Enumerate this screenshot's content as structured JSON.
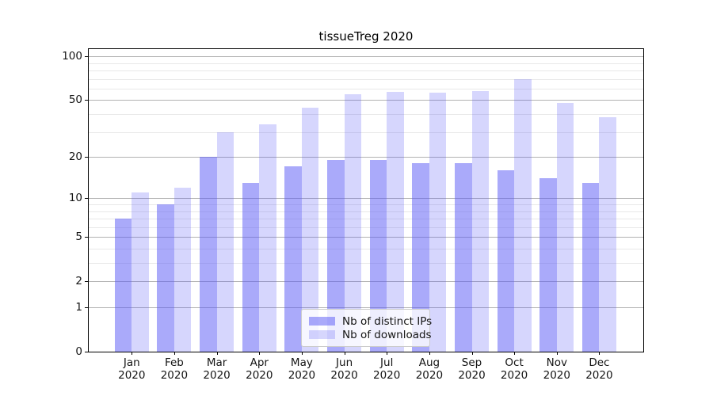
{
  "title": "tissueTreg 2020",
  "legend": {
    "items": [
      {
        "label": "Nb of distinct IPs",
        "series": "ips"
      },
      {
        "label": "Nb of downloads",
        "series": "downloads"
      }
    ]
  },
  "colors": {
    "bar_base": "#5555f5",
    "ips_alpha": 0.5,
    "downloads_alpha": 0.24,
    "ips_solid": "#a9a9fa",
    "downloads_solid": "#d8d8f8",
    "grid_major": "#b2b2b2",
    "grid_minor": "#e8e8e8",
    "axis_color": "#000000",
    "text_color": "#141414",
    "legend_border": "#cccccc"
  },
  "chart_data": {
    "type": "bar",
    "title": "tissueTreg 2020",
    "categories": [
      "Jan 2020",
      "Feb 2020",
      "Mar 2020",
      "Apr 2020",
      "May 2020",
      "Jun 2020",
      "Jul 2020",
      "Aug 2020",
      "Sep 2020",
      "Oct 2020",
      "Nov 2020",
      "Dec 2020"
    ],
    "x_tick_month": [
      "Jan",
      "Feb",
      "Mar",
      "Apr",
      "May",
      "Jun",
      "Jul",
      "Aug",
      "Sep",
      "Oct",
      "Nov",
      "Dec"
    ],
    "x_tick_year": "2020",
    "series": [
      {
        "name": "Nb of distinct IPs",
        "key": "ips",
        "values": [
          7,
          9,
          20,
          13,
          17,
          19,
          19,
          18,
          18,
          16,
          14,
          13
        ]
      },
      {
        "name": "Nb of downloads",
        "key": "downloads",
        "values": [
          11,
          12,
          30,
          34,
          44,
          55,
          57,
          56,
          58,
          70,
          48,
          38
        ]
      }
    ],
    "yscale": "log1p",
    "ylim": [
      0,
      112
    ],
    "y_major_ticks": [
      0,
      1,
      2,
      5,
      10,
      20,
      50,
      100
    ],
    "y_minor_ticks": [
      3,
      4,
      6,
      7,
      8,
      9,
      30,
      40,
      60,
      70,
      80,
      90
    ],
    "grid": true,
    "legend_position": "lower center"
  }
}
